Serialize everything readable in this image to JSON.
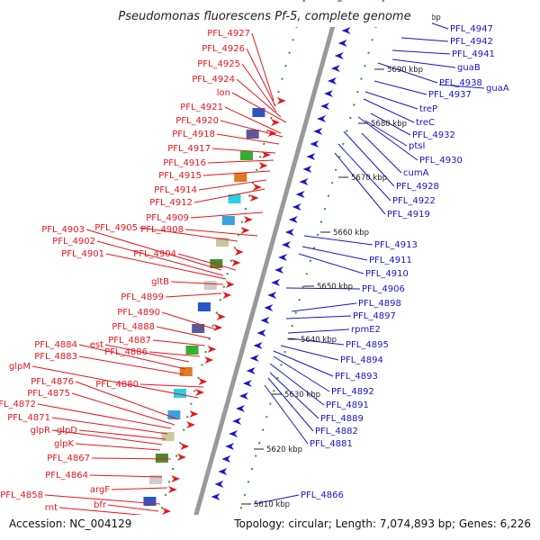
{
  "title": "Pseudomonas fluorescens Pf-5, complete genome",
  "accession": "Accession: NC_004129",
  "topology": "Topology: circular; Length: 7,074,893 bp; Genes: 6,226",
  "kbp_marks": [
    "5610 kbp",
    "5620 kbp",
    "5630 kbp",
    "5640 kbp",
    "5650 kbp",
    "5660 kbp",
    "5670 kbp",
    "5680 kbp",
    "5690 kbp",
    "kbp"
  ],
  "left_labels": [
    "PFL_4927",
    "PFL_4926",
    "PFL_4925",
    "PFL_4924",
    "lon",
    "PFL_4921",
    "PFL_4920",
    "PFL_4918",
    "PFL_4917",
    "PFL_4916",
    "PFL_4915",
    "PFL_4914",
    "PFL_4912",
    "PFL_4909",
    "PFL_4905",
    "PFL_4908",
    "PFL_4903",
    "PFL_4902",
    "PFL_4901",
    "PFL_4904",
    "gltB",
    "PFL_4899",
    "PFL_4890",
    "PFL_4888",
    "PFL_4887",
    "est",
    "PFL_4884",
    "PFL_4886",
    "PFL_4883",
    "glpM",
    "PFL_4880",
    "PFL_4876",
    "PFL_4875",
    "PFL_4872",
    "PFL_4871",
    "glpD",
    "glpR",
    "glpK",
    "PFL_4867",
    "PFL_4864",
    "argF",
    "PFL_4858",
    "bfr",
    "rnt"
  ],
  "right_labels": [
    "PFL_4947",
    "PFL_4942",
    "PFL_4941",
    "guaB",
    "PFL_4938",
    "guaA",
    "PFL_4937",
    "treP",
    "treC",
    "PFL_4932",
    "ptsI",
    "PFL_4930",
    "cumA",
    "PFL_4928",
    "PFL_4922",
    "PFL_4919",
    "PFL_4913",
    "PFL_4911",
    "PFL_4910",
    "PFL_4906",
    "PFL_4898",
    "PFL_4897",
    "rpmE2",
    "PFL_4895",
    "PFL_4894",
    "PFL_4893",
    "PFL_4892",
    "PFL_4891",
    "PFL_4889",
    "PFL_4882",
    "PFL_4881",
    "PFL_4866"
  ],
  "colors": {
    "forward": "#e8151a",
    "reverse": "#1a14c8",
    "backbone": "#8a8a8a",
    "tick": "#1a8a1a"
  },
  "icons": [
    "gene-arrow-icon"
  ]
}
